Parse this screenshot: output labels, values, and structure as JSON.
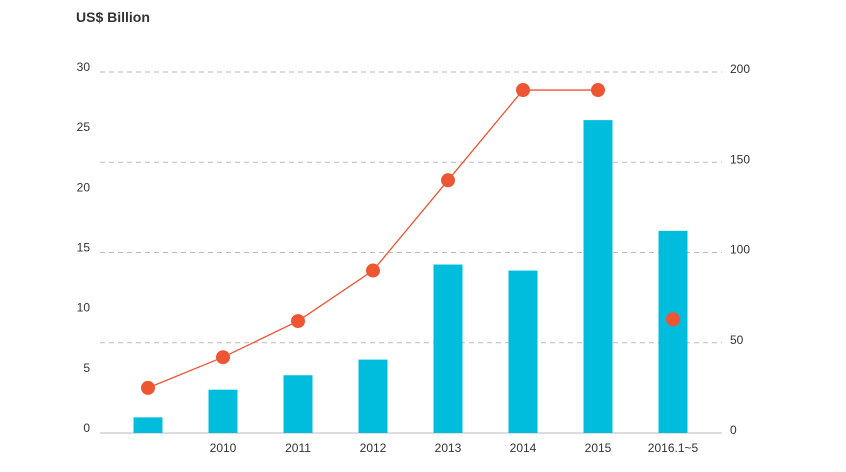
{
  "chart_data": {
    "type": "bar",
    "unit_label": "US$ Billion",
    "categories": [
      "",
      "2010",
      "2011",
      "2012",
      "2013",
      "2014",
      "2015",
      "2016.1~5"
    ],
    "series": [
      {
        "chart_type": "bar",
        "axis": "left",
        "color": "#00bcdd",
        "values": [
          1.3,
          3.6,
          4.8,
          6.1,
          14.0,
          13.5,
          26.0,
          16.8
        ]
      },
      {
        "chart_type": "line",
        "axis": "right",
        "color": "#ee5533",
        "values": [
          25,
          42,
          62,
          90,
          140,
          190,
          190,
          63
        ]
      }
    ],
    "connected_points": 7,
    "y_left": {
      "min": 0,
      "max": 30,
      "ticks": [
        0,
        5,
        10,
        15,
        20,
        25,
        30
      ]
    },
    "y_right": {
      "min": 0,
      "max": 200,
      "ticks": [
        0,
        50,
        100,
        150,
        200
      ]
    },
    "gridlines": [
      50,
      100,
      150,
      200
    ],
    "grid": true,
    "legend": "none"
  }
}
